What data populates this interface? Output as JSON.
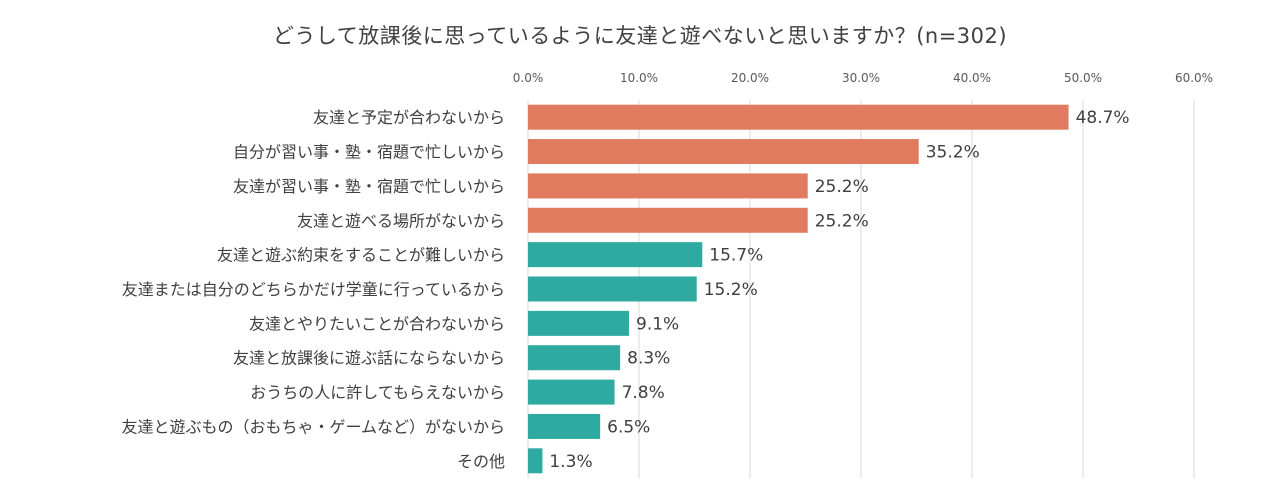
{
  "chart_data": {
    "type": "bar",
    "orientation": "horizontal",
    "title": "どうして放課後に思っているように友達と遊べないと思いますか？(n=302)",
    "categories": [
      "友達と予定が合わないから",
      "自分が習い事・塾・宿題で忙しいから",
      "友達が習い事・塾・宿題で忙しいから",
      "友達と遊べる場所がないから",
      "友達と遊ぶ約束をすることが難しいから",
      "友達または自分のどちらかだけ学童に行っているから",
      "友達とやりたいことが合わないから",
      "友達と放課後に遊ぶ話にならないから",
      "おうちの人に許してもらえないから",
      "友達と遊ぶもの（おもちゃ・ゲームなど）がないから",
      "その他"
    ],
    "values": [
      48.7,
      35.2,
      25.2,
      25.2,
      15.7,
      15.2,
      9.1,
      8.3,
      7.8,
      6.5,
      1.3
    ],
    "data_labels": [
      "48.7%",
      "35.2%",
      "25.2%",
      "25.2%",
      "15.7%",
      "15.2%",
      "9.1%",
      "8.3%",
      "7.8%",
      "6.5%",
      "1.3%"
    ],
    "x_ticks": [
      "0.0%",
      "10.0%",
      "20.0%",
      "30.0%",
      "40.0%",
      "50.0%",
      "60.0%"
    ],
    "xlim": [
      0,
      60
    ],
    "xlabel": "",
    "ylabel": "",
    "axis_position": "top",
    "grid": true,
    "legend": false,
    "colors": {
      "highlight": "#e07b5f",
      "normal": "#2eaaa1",
      "grid": "#d9d9d9",
      "text": "#404040"
    },
    "highlight_count": 4
  }
}
